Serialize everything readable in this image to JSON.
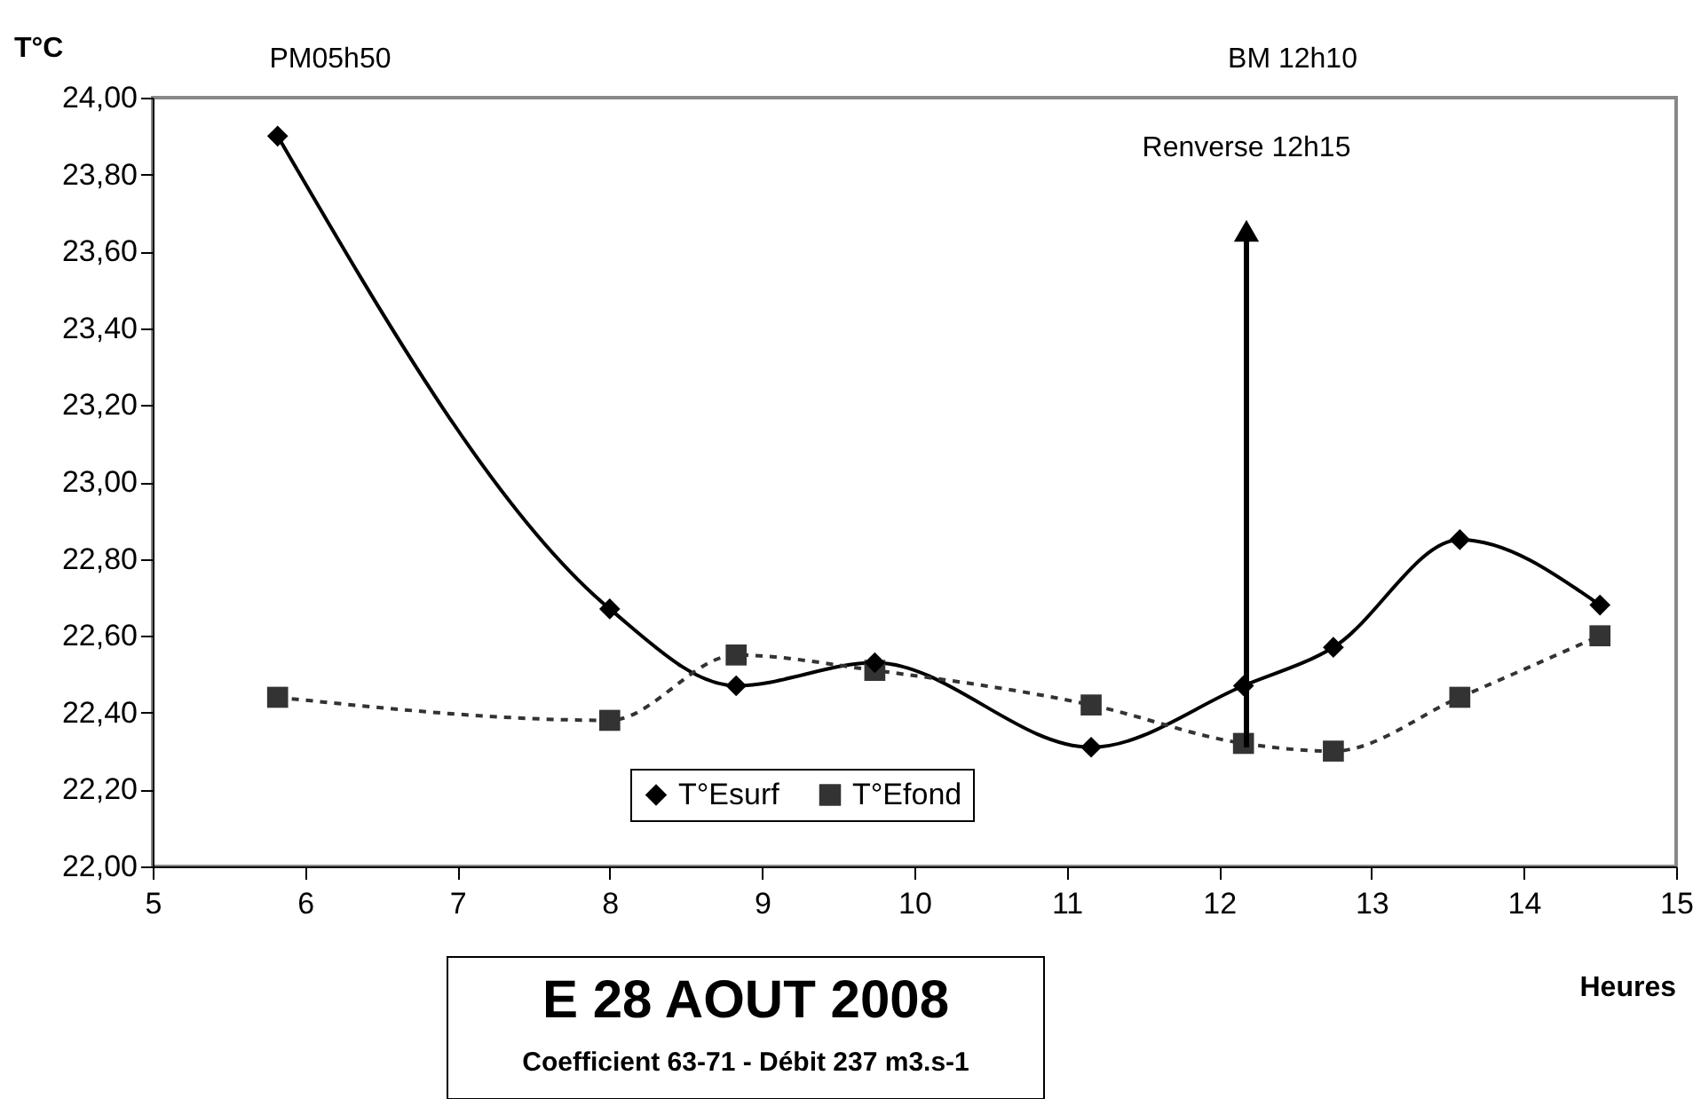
{
  "chart_data": {
    "type": "line",
    "title": "E 28 AOUT 2008",
    "subtitle": "Coefficient 63-71 - Débit 237 m3.s-1",
    "xlabel": "Heures",
    "ylabel": "T°C",
    "xlim": [
      5,
      15
    ],
    "xticks": [
      5,
      6,
      7,
      8,
      9,
      10,
      11,
      12,
      13,
      14,
      15
    ],
    "ylim": [
      22,
      24
    ],
    "yticks": [
      {
        "value": 22,
        "label": "22,00"
      },
      {
        "value": 22.2,
        "label": "22,20"
      },
      {
        "value": 22.4,
        "label": "22,40"
      },
      {
        "value": 22.6,
        "label": "22,60"
      },
      {
        "value": 22.8,
        "label": "22,80"
      },
      {
        "value": 23,
        "label": "23,00"
      },
      {
        "value": 23.2,
        "label": "23,20"
      },
      {
        "value": 23.4,
        "label": "23,40"
      },
      {
        "value": 23.6,
        "label": "23,60"
      },
      {
        "value": 23.8,
        "label": "23,80"
      },
      {
        "value": 24,
        "label": "24,00"
      }
    ],
    "x": [
      5.82,
      8.0,
      8.83,
      9.74,
      11.16,
      12.16,
      12.75,
      13.58,
      14.5
    ],
    "series": [
      {
        "name": "T°Esurf",
        "color": "#000000",
        "marker": "diamond",
        "line_style": "solid",
        "values": [
          23.9,
          22.67,
          22.47,
          22.53,
          22.31,
          22.47,
          22.57,
          22.85,
          22.68
        ]
      },
      {
        "name": "T°Efond",
        "color": "#333333",
        "marker": "square",
        "line_style": "dashed",
        "values": [
          22.44,
          22.38,
          22.55,
          22.51,
          22.42,
          22.32,
          22.3,
          22.44,
          22.6
        ]
      }
    ],
    "annotations": [
      "PM05h50",
      "BM 12h10",
      "Renverse 12h15"
    ],
    "grid": false,
    "legend": "bottom"
  }
}
